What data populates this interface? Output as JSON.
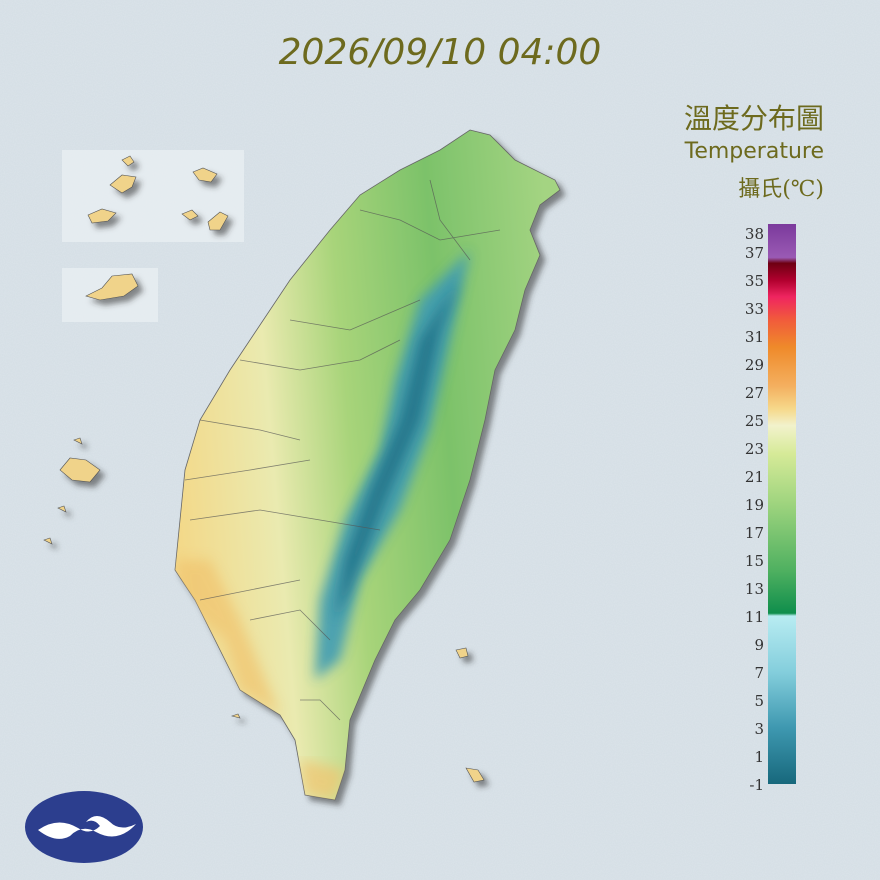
{
  "header": {
    "timestamp": "2026/09/10 04:00"
  },
  "legend": {
    "title": "溫度分布圖",
    "subtitle": "Temperature",
    "unit": "攝氏(℃)",
    "labels": [
      38,
      37,
      35,
      33,
      31,
      29,
      27,
      25,
      23,
      21,
      19,
      17,
      15,
      13,
      11,
      9,
      7,
      5,
      3,
      1,
      -1
    ]
  }
}
